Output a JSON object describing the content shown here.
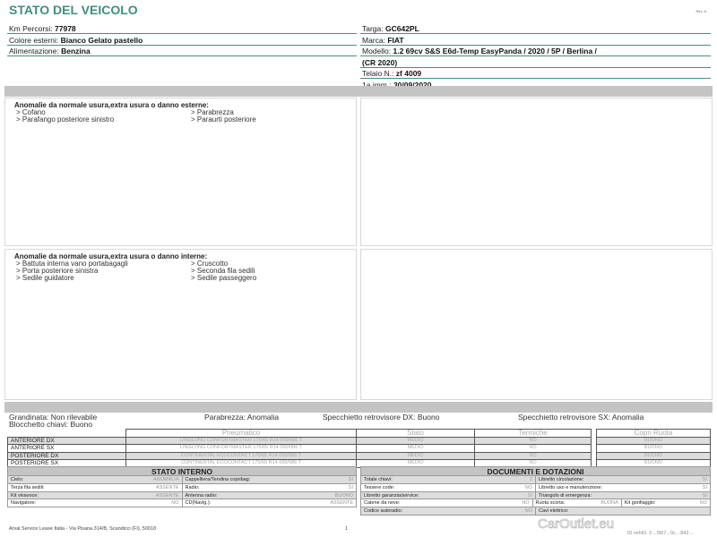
{
  "header": {
    "title": "STATO DEL VEICOLO",
    "rev": "Rev. A"
  },
  "left_fields": [
    {
      "label": "Km Percorsi: ",
      "value": "77978"
    },
    {
      "label": "Colore esterni: ",
      "value": "Bianco Gelato pastello"
    },
    {
      "label": "Alimentazione: ",
      "value": "Benzina"
    }
  ],
  "right_fields": [
    {
      "label": "Targa: ",
      "value": "GC642PL"
    },
    {
      "label": "Marca: ",
      "value": "FIAT"
    },
    {
      "label": "Modello: ",
      "value": "1.2 69cv S&S E6d-Temp EasyPanda / 2020 / 5P / Berlina /"
    },
    {
      "label": "",
      "value": "(CR 2020)"
    },
    {
      "label": "Telaio N.: ",
      "value": "zf 4009"
    },
    {
      "label": "1a imm.: ",
      "value": "30/09/2020"
    }
  ],
  "external": {
    "title": "Anomalie da normale usura,extra usura o danno esterne:",
    "items": [
      "> Cofano",
      "> Parabrezza",
      "> Parafango posteriore sinistro",
      "> Paraurti posteriore"
    ]
  },
  "internal": {
    "title": "Anomalie da normale usura,extra usura o danno interne:",
    "items": [
      "> Battuta interna vano portabagagli",
      "> Cruscotto",
      "> Porta posteriore sinistra",
      "> Seconda fila sedili",
      "> Sedile guidatore",
      "> Sedile passeggero"
    ]
  },
  "summary": {
    "grandinata": "Grandinata: Non rilevabile",
    "blocchetto": "Blocchetto chiavi: Buono",
    "parabrezza": "Parabrezza: Anomalia",
    "specchio_dx": "Specchietto retrovisore DX: Buono",
    "specchio_sx": "Specchietto retrovisore SX: Anomalia"
  },
  "tyres": {
    "headers": [
      "Pneumatico",
      "Stato",
      "Termiche",
      "Copri Ruota"
    ],
    "rows": [
      {
        "pos": "ANTERIORE DX",
        "tyre": "LINGLONG CONFORTMASTER 175/65 R14 000/086 T",
        "stato": "MEDIO",
        "termiche": "NO",
        "copri": "BUONO"
      },
      {
        "pos": "ANTERIORE SX",
        "tyre": "LINGLONG CONFORTMASTER 175/65 R14 000/086 T",
        "stato": "MEDIO",
        "termiche": "NO",
        "copri": "BUONO"
      },
      {
        "pos": "POSTERIORE DX",
        "tyre": "CONTINENTAL ECOCONTACT 175/65 R14 000/086 T",
        "stato": "MEDIO",
        "termiche": "NO",
        "copri": "BUONO"
      },
      {
        "pos": "POSTERIORE SX",
        "tyre": "CONTINENTAL ECOCONTACT 175/65 R14 000/086 T",
        "stato": "MEDIO",
        "termiche": "NO",
        "copri": "BUONO"
      }
    ]
  },
  "stato_interno": {
    "title": "STATO INTERNO",
    "rows": [
      [
        {
          "l": "Cielo:",
          "v": "ANOMALIA"
        },
        {
          "l": "Cappelliera/Tendina copribag:",
          "v": "SI"
        }
      ],
      [
        {
          "l": "Terza fila sedili:",
          "v": "ASSENTE"
        },
        {
          "l": "Radio:",
          "v": "SI"
        }
      ],
      [
        {
          "l": "Kit vivavoce:",
          "v": "ASSENTE"
        },
        {
          "l": "Antenna radio:",
          "v": "BUONO"
        }
      ],
      [
        {
          "l": "Navigatore:",
          "v": "NO"
        },
        {
          "l": "CD(Navig.):",
          "v": "ASSENTE"
        }
      ]
    ]
  },
  "documenti": {
    "title": "DOCUMENTI E DOTAZIONI",
    "rows": [
      [
        {
          "l": "Totale chiavi:",
          "v": "2"
        },
        {
          "l": "Libretto circolazione:",
          "v": "SI"
        }
      ],
      [
        {
          "l": "Tessere code:",
          "v": "NO"
        },
        {
          "l": "Libretto uso e manutenzione:",
          "v": "SI"
        }
      ],
      [
        {
          "l": "Libretto garanzia/service:",
          "v": "SI"
        },
        {
          "l": "Triangolo di emergenza:",
          "v": "SI"
        }
      ],
      [
        {
          "l": "Catene da neve:",
          "v": "NO"
        },
        {
          "l": "Ruota scorta:",
          "v": "BUONA"
        },
        {
          "l": "Kit gonfiaggio:",
          "v": "NO"
        }
      ],
      [
        {
          "l": "Codice autoradio:",
          "v": "NO"
        },
        {
          "l": "Cavi elettrico:",
          "v": ""
        }
      ]
    ]
  },
  "footer": {
    "address": "Arval Service Lease Italia - Via Pisana 314/B, Scandicci (FI), 50018",
    "page": "1",
    "id": "ID veNO. 2…/567 , 0c…842…"
  },
  "watermark": "CarOutlet.eu"
}
